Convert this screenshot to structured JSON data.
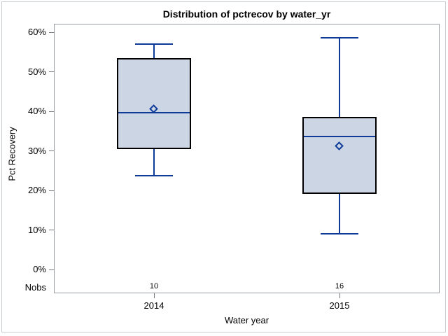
{
  "chart_data": {
    "type": "boxplot",
    "title": "Distribution of pctrecov by water_yr",
    "xlabel": "Water year",
    "ylabel": "Pct Recovery",
    "nobs_header": "Nobs",
    "ylim": [
      0,
      60
    ],
    "grid": false,
    "yticks": [
      {
        "value": 0,
        "label": "0%"
      },
      {
        "value": 10,
        "label": "10%"
      },
      {
        "value": 20,
        "label": "20%"
      },
      {
        "value": 30,
        "label": "30%"
      },
      {
        "value": 40,
        "label": "40%"
      },
      {
        "value": 50,
        "label": "50%"
      },
      {
        "value": 60,
        "label": "60%"
      }
    ],
    "groups": [
      {
        "category": "2014",
        "nobs": "10",
        "whisker_low": 23.7,
        "q1": 30.4,
        "median": 39.7,
        "mean": 40.5,
        "q3": 53.5,
        "whisker_high": 57.0
      },
      {
        "category": "2015",
        "nobs": "16",
        "whisker_low": 9.0,
        "q1": 19.1,
        "median": 33.6,
        "mean": 31.1,
        "q3": 38.5,
        "whisker_high": 58.5
      }
    ],
    "colors": {
      "box_fill": "#CCD5E4",
      "box_border": "#000000",
      "line": "#0F3B98",
      "plot_border": "#9AA0A6",
      "tick": "#75797D",
      "figure_border": "#C9CED2",
      "text": "#000000"
    }
  }
}
